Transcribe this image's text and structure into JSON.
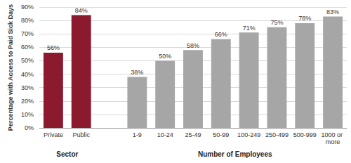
{
  "chart_data": {
    "type": "bar",
    "y_label": "Percentage with Access to Paid Sick Days",
    "categories": [
      "Private",
      "Public",
      null,
      "1-9",
      "10-24",
      "25-49",
      "50-99",
      "100-249",
      "250-499",
      "500-999",
      "1000 or more"
    ],
    "values": [
      56,
      84,
      null,
      38,
      50,
      58,
      66,
      71,
      75,
      78,
      83
    ],
    "value_labels": [
      "56%",
      "84%",
      null,
      "38%",
      "50%",
      "58%",
      "66%",
      "71%",
      "75%",
      "78%",
      "83%"
    ],
    "colors": [
      "#8b1a2f",
      "#8b1a2f",
      null,
      "#a6a6a6",
      "#a6a6a6",
      "#a6a6a6",
      "#a6a6a6",
      "#a6a6a6",
      "#a6a6a6",
      "#a6a6a6",
      "#a6a6a6"
    ],
    "groups": [
      {
        "label": "Sector",
        "categories": [
          "Private",
          "Public"
        ]
      },
      {
        "label": "Number of Employees",
        "categories": [
          "1-9",
          "10-24",
          "25-49",
          "50-99",
          "100-249",
          "250-499",
          "500-999",
          "1000 or more"
        ]
      }
    ],
    "ylim": [
      0,
      90
    ],
    "yticks": [
      {
        "value": 0,
        "label": "0%"
      },
      {
        "value": 10,
        "label": "10%"
      },
      {
        "value": 20,
        "label": "20%"
      },
      {
        "value": 30,
        "label": "30%"
      },
      {
        "value": 40,
        "label": "40%"
      },
      {
        "value": 50,
        "label": "50%"
      },
      {
        "value": 60,
        "label": "60%"
      },
      {
        "value": 70,
        "label": "70%"
      },
      {
        "value": 80,
        "label": "80%"
      },
      {
        "value": 90,
        "label": "90%"
      }
    ],
    "grid": true,
    "data_labels": true
  }
}
